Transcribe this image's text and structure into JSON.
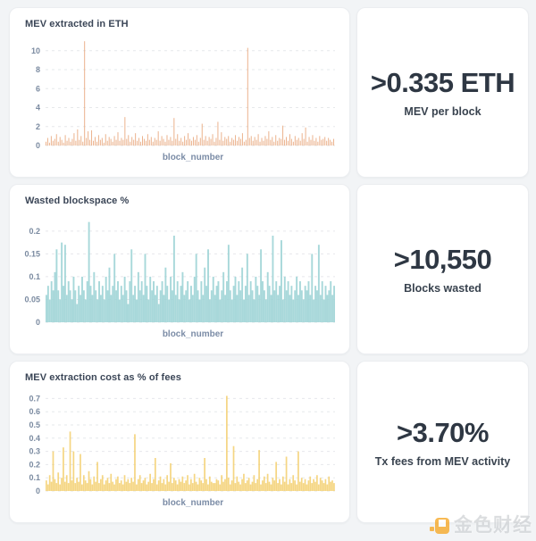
{
  "page": {
    "background": "#f2f4f6",
    "card_background": "#ffffff",
    "card_border": "#ebedf0"
  },
  "stats": [
    {
      "value": ">0.335 ETH",
      "label": "MEV per block"
    },
    {
      "value": ">10,550",
      "label": "Blocks wasted"
    },
    {
      "value": ">3.70%",
      "label": "Tx fees from MEV activity"
    }
  ],
  "watermark": {
    "text": "金色财经",
    "logo_color": "#f6a41c"
  },
  "chart_data": [
    {
      "type": "bar",
      "title": "MEV extracted in ETH",
      "xlabel": "block_number",
      "ylabel": "",
      "ylim": [
        0,
        11.3
      ],
      "yticks": [
        10,
        8,
        6,
        4,
        2,
        0
      ],
      "ytick_labels": [
        "10",
        "8",
        "6",
        "4",
        "2",
        "0"
      ],
      "grid": "dashed",
      "legend": "none",
      "color": "#e7a377",
      "opacity": 0.85,
      "bar_ratio": 0.5,
      "values": [
        0.4,
        0.8,
        0.3,
        1.0,
        0.5,
        0.7,
        1.2,
        0.4,
        0.9,
        0.6,
        0.3,
        1.1,
        0.5,
        0.8,
        0.4,
        0.7,
        1.3,
        0.5,
        1.7,
        0.6,
        1.0,
        0.4,
        11,
        0.8,
        1.5,
        0.6,
        1.6,
        0.5,
        0.9,
        0.4,
        1.1,
        0.6,
        0.8,
        0.3,
        1.2,
        0.5,
        0.9,
        0.7,
        0.4,
        1.0,
        0.6,
        1.4,
        0.5,
        0.8,
        0.6,
        3.0,
        0.7,
        1.1,
        0.4,
        0.9,
        0.6,
        1.3,
        0.5,
        0.8,
        0.4,
        1.0,
        0.7,
        0.5,
        1.2,
        0.6,
        0.9,
        0.4,
        0.8,
        0.6,
        1.5,
        0.5,
        1.0,
        0.7,
        0.4,
        1.1,
        0.6,
        0.9,
        0.5,
        2.9,
        0.7,
        1.2,
        0.5,
        0.8,
        0.4,
        1.0,
        0.6,
        1.3,
        0.7,
        0.5,
        0.9,
        0.6,
        1.1,
        0.4,
        0.8,
        2.3,
        0.6,
        1.0,
        0.5,
        0.9,
        0.7,
        1.2,
        0.4,
        0.8,
        2.5,
        0.6,
        1.4,
        0.5,
        0.9,
        0.7,
        1.0,
        0.4,
        0.8,
        0.6,
        1.1,
        0.5,
        0.9,
        0.7,
        1.3,
        0.4,
        0.6,
        10.3,
        0.8,
        1.0,
        0.5,
        0.9,
        0.6,
        1.2,
        0.4,
        0.8,
        0.5,
        1.0,
        0.7,
        1.5,
        0.6,
        0.9,
        0.4,
        1.1,
        0.5,
        0.8,
        0.7,
        2.1,
        0.6,
        0.9,
        0.5,
        1.2,
        0.7,
        0.4,
        1.0,
        0.6,
        0.8,
        0.5,
        1.3,
        0.7,
        1.9,
        0.4,
        0.9,
        0.6,
        1.1,
        0.5,
        0.8,
        0.4,
        1.0,
        0.6,
        0.7,
        0.9,
        0.5,
        0.8,
        0.6,
        0.4,
        0.7
      ]
    },
    {
      "type": "bar",
      "title": "Wasted blockspace %",
      "xlabel": "block_number",
      "ylabel": "",
      "ylim": [
        0,
        0.235
      ],
      "yticks": [
        0.2,
        0.15,
        0.1,
        0.05,
        0
      ],
      "ytick_labels": [
        "0.2",
        "0.15",
        "0.1",
        "0.05",
        "0"
      ],
      "grid": "dashed",
      "legend": "none",
      "color": "#9fd4d6",
      "opacity": 0.9,
      "bar_ratio": 1,
      "values": [
        0.06,
        0.08,
        0.05,
        0.09,
        0.07,
        0.11,
        0.16,
        0.07,
        0.05,
        0.175,
        0.08,
        0.17,
        0.06,
        0.09,
        0.07,
        0.05,
        0.1,
        0.07,
        0.04,
        0.08,
        0.06,
        0.1,
        0.07,
        0.05,
        0.09,
        0.22,
        0.08,
        0.06,
        0.11,
        0.07,
        0.05,
        0.09,
        0.06,
        0.08,
        0.05,
        0.1,
        0.07,
        0.12,
        0.06,
        0.08,
        0.15,
        0.07,
        0.09,
        0.05,
        0.08,
        0.06,
        0.1,
        0.07,
        0.04,
        0.09,
        0.16,
        0.06,
        0.08,
        0.05,
        0.11,
        0.07,
        0.09,
        0.06,
        0.15,
        0.08,
        0.05,
        0.1,
        0.07,
        0.09,
        0.06,
        0.08,
        0.04,
        0.07,
        0.09,
        0.06,
        0.12,
        0.08,
        0.05,
        0.1,
        0.07,
        0.19,
        0.06,
        0.09,
        0.05,
        0.08,
        0.11,
        0.06,
        0.07,
        0.09,
        0.05,
        0.08,
        0.06,
        0.1,
        0.15,
        0.07,
        0.05,
        0.09,
        0.06,
        0.12,
        0.08,
        0.16,
        0.05,
        0.07,
        0.1,
        0.06,
        0.08,
        0.09,
        0.05,
        0.07,
        0.11,
        0.06,
        0.09,
        0.17,
        0.07,
        0.05,
        0.08,
        0.1,
        0.06,
        0.09,
        0.07,
        0.12,
        0.05,
        0.08,
        0.15,
        0.06,
        0.09,
        0.07,
        0.05,
        0.1,
        0.08,
        0.06,
        0.16,
        0.09,
        0.07,
        0.05,
        0.11,
        0.08,
        0.06,
        0.19,
        0.07,
        0.09,
        0.06,
        0.08,
        0.18,
        0.05,
        0.1,
        0.07,
        0.09,
        0.06,
        0.08,
        0.05,
        0.07,
        0.1,
        0.06,
        0.09,
        0.07,
        0.05,
        0.08,
        0.07,
        0.09,
        0.06,
        0.15,
        0.05,
        0.08,
        0.07,
        0.17,
        0.06,
        0.09,
        0.05,
        0.08,
        0.06,
        0.07,
        0.09,
        0.06,
        0.08
      ]
    },
    {
      "type": "bar",
      "title": "MEV extraction cost as % of fees",
      "xlabel": "block_number",
      "ylabel": "",
      "ylim": [
        0,
        0.75
      ],
      "yticks": [
        0.7,
        0.6,
        0.5,
        0.4,
        0.3,
        0.2,
        0.1,
        0
      ],
      "ytick_labels": [
        "0.7",
        "0.6",
        "0.5",
        "0.4",
        "0.3",
        "0.2",
        "0.1",
        "0"
      ],
      "grid": "dashed",
      "legend": "none",
      "color": "#f3cf6d",
      "opacity": 0.85,
      "bar_ratio": 0.9,
      "values": [
        0.08,
        0.05,
        0.12,
        0.07,
        0.3,
        0.09,
        0.06,
        0.14,
        0.05,
        0.1,
        0.33,
        0.07,
        0.12,
        0.06,
        0.45,
        0.08,
        0.3,
        0.06,
        0.1,
        0.07,
        0.28,
        0.05,
        0.12,
        0.08,
        0.06,
        0.15,
        0.09,
        0.05,
        0.11,
        0.07,
        0.22,
        0.06,
        0.09,
        0.12,
        0.05,
        0.08,
        0.1,
        0.06,
        0.13,
        0.07,
        0.05,
        0.09,
        0.11,
        0.06,
        0.08,
        0.05,
        0.12,
        0.07,
        0.09,
        0.06,
        0.1,
        0.07,
        0.43,
        0.05,
        0.09,
        0.12,
        0.06,
        0.08,
        0.1,
        0.05,
        0.07,
        0.13,
        0.06,
        0.09,
        0.25,
        0.05,
        0.08,
        0.11,
        0.06,
        0.09,
        0.05,
        0.12,
        0.07,
        0.21,
        0.06,
        0.1,
        0.08,
        0.05,
        0.09,
        0.07,
        0.11,
        0.06,
        0.08,
        0.12,
        0.05,
        0.09,
        0.06,
        0.13,
        0.07,
        0.05,
        0.1,
        0.08,
        0.06,
        0.25,
        0.09,
        0.05,
        0.11,
        0.07,
        0.06,
        0.06,
        0.09,
        0.08,
        0.05,
        0.12,
        0.07,
        0.09,
        0.72,
        0.1,
        0.05,
        0.08,
        0.34,
        0.06,
        0.11,
        0.07,
        0.05,
        0.09,
        0.13,
        0.06,
        0.08,
        0.1,
        0.05,
        0.07,
        0.12,
        0.06,
        0.09,
        0.31,
        0.05,
        0.08,
        0.11,
        0.06,
        0.13,
        0.07,
        0.05,
        0.1,
        0.08,
        0.22,
        0.06,
        0.09,
        0.05,
        0.11,
        0.07,
        0.26,
        0.05,
        0.09,
        0.06,
        0.12,
        0.08,
        0.05,
        0.3,
        0.07,
        0.1,
        0.06,
        0.09,
        0.05,
        0.08,
        0.11,
        0.06,
        0.09,
        0.07,
        0.12,
        0.05,
        0.1,
        0.08,
        0.06,
        0.09,
        0.05,
        0.11,
        0.07,
        0.08,
        0.06
      ]
    }
  ]
}
